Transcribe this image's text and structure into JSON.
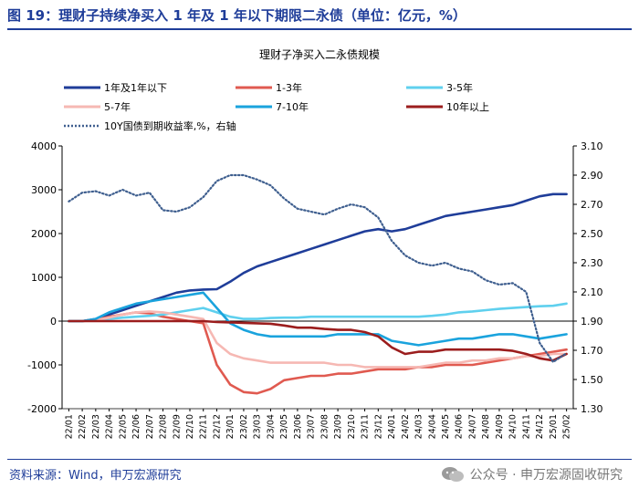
{
  "figure": {
    "title": "图 19：理财子持续净买入 1 年及 1 年以下期限二永债（单位：亿元，%）",
    "source": "资料来源：Wind，申万宏源研究",
    "watermark": "公众号 · 申万宏源固收研究"
  },
  "colors": {
    "title_blue": "#1f3d99",
    "y1_or_below": "#1f3d99",
    "y1_3": "#e05a50",
    "y3_5": "#5fd0ee",
    "y5_7": "#f6b8b3",
    "y7_10": "#1aa3dd",
    "y10_plus": "#9b1d1d",
    "yield": "#3f5f8f"
  },
  "chart_data": {
    "type": "line",
    "title": "理财子净买入二永债规模",
    "x": [
      "22/01",
      "22/02",
      "22/03",
      "22/04",
      "22/05",
      "22/06",
      "22/07",
      "22/08",
      "22/09",
      "22/10",
      "22/11",
      "22/12",
      "23/01",
      "23/02",
      "23/03",
      "23/04",
      "23/05",
      "23/06",
      "23/07",
      "23/08",
      "23/09",
      "23/10",
      "23/11",
      "23/12",
      "24/01",
      "24/02",
      "24/03",
      "24/04",
      "24/05",
      "24/06",
      "24/07",
      "24/08",
      "24/09",
      "24/10",
      "24/11",
      "24/12",
      "25/01",
      "25/02"
    ],
    "y_left": {
      "ticks": [
        -2000,
        -1000,
        0,
        1000,
        2000,
        3000,
        4000
      ],
      "ylim": [
        -2000,
        4000
      ]
    },
    "y_right": {
      "ticks": [
        "1.30",
        "1.50",
        "1.70",
        "1.90",
        "2.10",
        "2.30",
        "2.50",
        "2.70",
        "2.90",
        "3.10"
      ],
      "ylim": [
        1.3,
        3.1
      ],
      "label": "右轴"
    },
    "series": [
      {
        "key": "y1_or_below",
        "name": "1年及1年以下",
        "axis": "left",
        "style": "solid",
        "values": [
          0,
          0,
          50,
          150,
          250,
          350,
          450,
          550,
          650,
          700,
          720,
          730,
          900,
          1100,
          1250,
          1350,
          1450,
          1550,
          1650,
          1750,
          1850,
          1950,
          2050,
          2100,
          2050,
          2100,
          2200,
          2300,
          2400,
          2450,
          2500,
          2550,
          2600,
          2650,
          2750,
          2850,
          2900,
          2900
        ]
      },
      {
        "key": "y1_3",
        "name": "1-3年",
        "axis": "left",
        "style": "solid",
        "values": [
          0,
          0,
          30,
          100,
          150,
          200,
          180,
          100,
          50,
          0,
          -50,
          -1000,
          -1450,
          -1620,
          -1650,
          -1550,
          -1350,
          -1300,
          -1250,
          -1250,
          -1200,
          -1200,
          -1150,
          -1100,
          -1100,
          -1100,
          -1050,
          -1050,
          -1000,
          -1000,
          -1000,
          -950,
          -900,
          -850,
          -800,
          -750,
          -700,
          -650
        ]
      },
      {
        "key": "y3_5",
        "name": "3-5年",
        "axis": "left",
        "style": "solid",
        "values": [
          0,
          0,
          20,
          50,
          80,
          100,
          120,
          150,
          200,
          250,
          300,
          200,
          100,
          50,
          50,
          70,
          80,
          80,
          100,
          100,
          100,
          100,
          100,
          100,
          100,
          100,
          100,
          120,
          150,
          200,
          220,
          250,
          280,
          300,
          320,
          340,
          350,
          400
        ]
      },
      {
        "key": "y5_7",
        "name": "5-7年",
        "axis": "left",
        "style": "solid",
        "values": [
          0,
          0,
          20,
          80,
          150,
          200,
          220,
          200,
          150,
          100,
          50,
          -500,
          -750,
          -850,
          -900,
          -950,
          -950,
          -950,
          -950,
          -950,
          -1000,
          -1000,
          -1050,
          -1050,
          -1050,
          -1050,
          -1050,
          -1000,
          -950,
          -950,
          -900,
          -900,
          -850,
          -850,
          -800,
          -800,
          -750,
          -750
        ]
      },
      {
        "key": "y7_10",
        "name": "7-10年",
        "axis": "left",
        "style": "solid",
        "values": [
          0,
          0,
          50,
          200,
          300,
          400,
          450,
          500,
          550,
          600,
          650,
          300,
          -50,
          -200,
          -300,
          -350,
          -350,
          -350,
          -350,
          -350,
          -300,
          -300,
          -300,
          -300,
          -450,
          -500,
          -550,
          -500,
          -450,
          -400,
          -400,
          -350,
          -300,
          -300,
          -350,
          -400,
          -350,
          -300
        ]
      },
      {
        "key": "y10_plus",
        "name": "10年以上",
        "axis": "left",
        "style": "solid",
        "values": [
          0,
          0,
          0,
          0,
          0,
          0,
          0,
          0,
          0,
          0,
          0,
          -20,
          -30,
          -40,
          -50,
          -60,
          -100,
          -150,
          -150,
          -180,
          -200,
          -200,
          -250,
          -350,
          -600,
          -750,
          -700,
          -700,
          -650,
          -650,
          -650,
          -650,
          -650,
          -680,
          -750,
          -850,
          -900,
          -750
        ]
      },
      {
        "key": "yield",
        "name": "10Y国债到期收益率,%，右轴",
        "axis": "right",
        "style": "dotted",
        "values": [
          2.72,
          2.78,
          2.79,
          2.76,
          2.8,
          2.76,
          2.78,
          2.66,
          2.65,
          2.68,
          2.75,
          2.86,
          2.9,
          2.9,
          2.87,
          2.83,
          2.74,
          2.67,
          2.65,
          2.63,
          2.67,
          2.7,
          2.68,
          2.61,
          2.45,
          2.35,
          2.3,
          2.28,
          2.3,
          2.26,
          2.24,
          2.18,
          2.15,
          2.16,
          2.1,
          1.75,
          1.62,
          1.68
        ]
      }
    ]
  }
}
